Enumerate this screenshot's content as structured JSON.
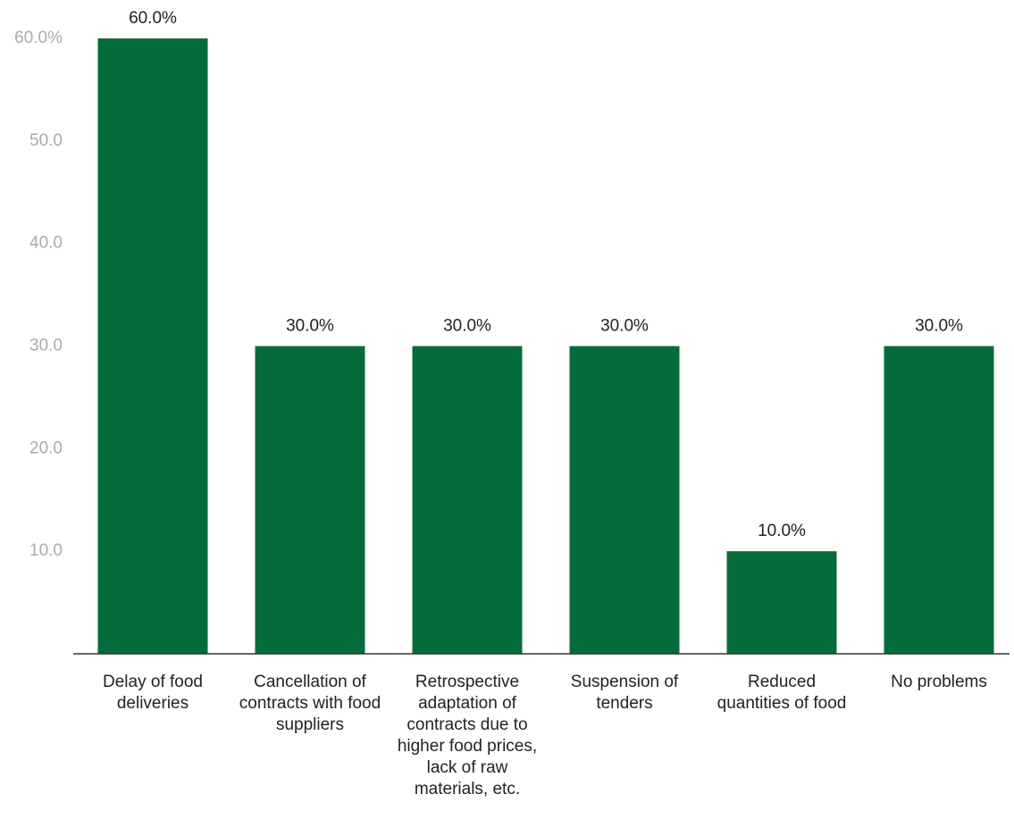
{
  "chart_data": {
    "type": "bar",
    "categories": [
      "Delay of food deliveries",
      "Cancellation of contracts with food suppliers",
      "Retrospective adaptation of contracts due to higher food prices, lack of raw materials, etc.",
      "Suspension of tenders",
      "Reduced quantities of food",
      "No problems"
    ],
    "values": [
      60,
      30,
      30,
      30,
      10,
      30
    ],
    "value_labels": [
      "60.0%",
      "30.0%",
      "30.0%",
      "30.0%",
      "10.0%",
      "30.0%"
    ],
    "color": "#046c38",
    "ylim": [
      0,
      60
    ],
    "yticks": [
      {
        "value": 10,
        "label": "10.0"
      },
      {
        "value": 20,
        "label": "20.0"
      },
      {
        "value": 30,
        "label": "30.0"
      },
      {
        "value": 40,
        "label": "40.0"
      },
      {
        "value": 50,
        "label": "50.0"
      },
      {
        "value": 60,
        "label": "60.0%"
      }
    ],
    "grid": false
  }
}
